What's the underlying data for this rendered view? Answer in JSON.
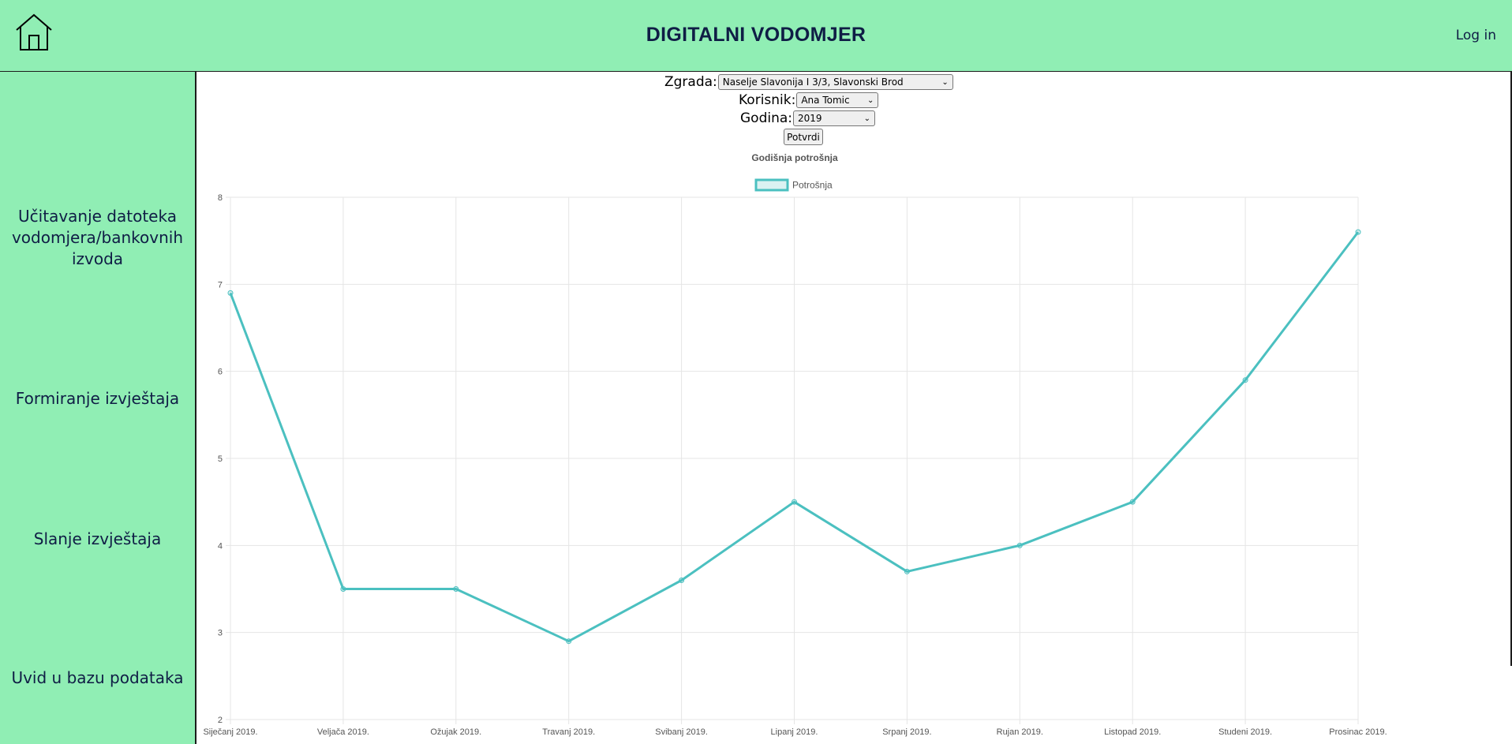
{
  "header": {
    "title": "DIGITALNI VODOMJER",
    "login_label": "Log in",
    "home_icon": "home-icon"
  },
  "sidebar": {
    "items": [
      {
        "lines": [
          "Učitavanje datoteka",
          "vodomjera/bankovnih",
          "izvoda"
        ]
      },
      {
        "lines": [
          "Formiranje izvještaja"
        ]
      },
      {
        "lines": [
          "Slanje izvještaja"
        ]
      },
      {
        "lines": [
          "Uvid u bazu podataka"
        ]
      }
    ]
  },
  "form": {
    "zgrada_label": "Zgrada:",
    "zgrada_value": "Naselje Slavonija I 3/3, Slavonski Brod",
    "korisnik_label": "Korisnik:",
    "korisnik_value": "Ana Tomic",
    "godina_label": "Godina:",
    "godina_value": "2019",
    "submit_label": "Potvrdi"
  },
  "colors": {
    "accent": "#90eeb4",
    "line": "#4bc0c0",
    "text": "#0f1d45"
  },
  "chart_data": {
    "type": "line",
    "title": "Godišnja potrošnja",
    "categories": [
      "Siječanj 2019.",
      "Veljača 2019.",
      "Ožujak 2019.",
      "Travanj 2019.",
      "Svibanj 2019.",
      "Lipanj 2019.",
      "Srpanj 2019.",
      "Rujan 2019.",
      "Listopad 2019.",
      "Studeni 2019.",
      "Prosinac 2019."
    ],
    "series": [
      {
        "name": "Potrošnja",
        "values": [
          6.9,
          3.5,
          3.5,
          2.9,
          3.6,
          4.5,
          3.7,
          4.0,
          4.5,
          5.9,
          7.6
        ]
      }
    ],
    "ylim": [
      2,
      8
    ],
    "yticks": [
      "2",
      "3",
      "4",
      "5",
      "6",
      "7",
      "8"
    ],
    "grid": true,
    "legend": "top"
  }
}
